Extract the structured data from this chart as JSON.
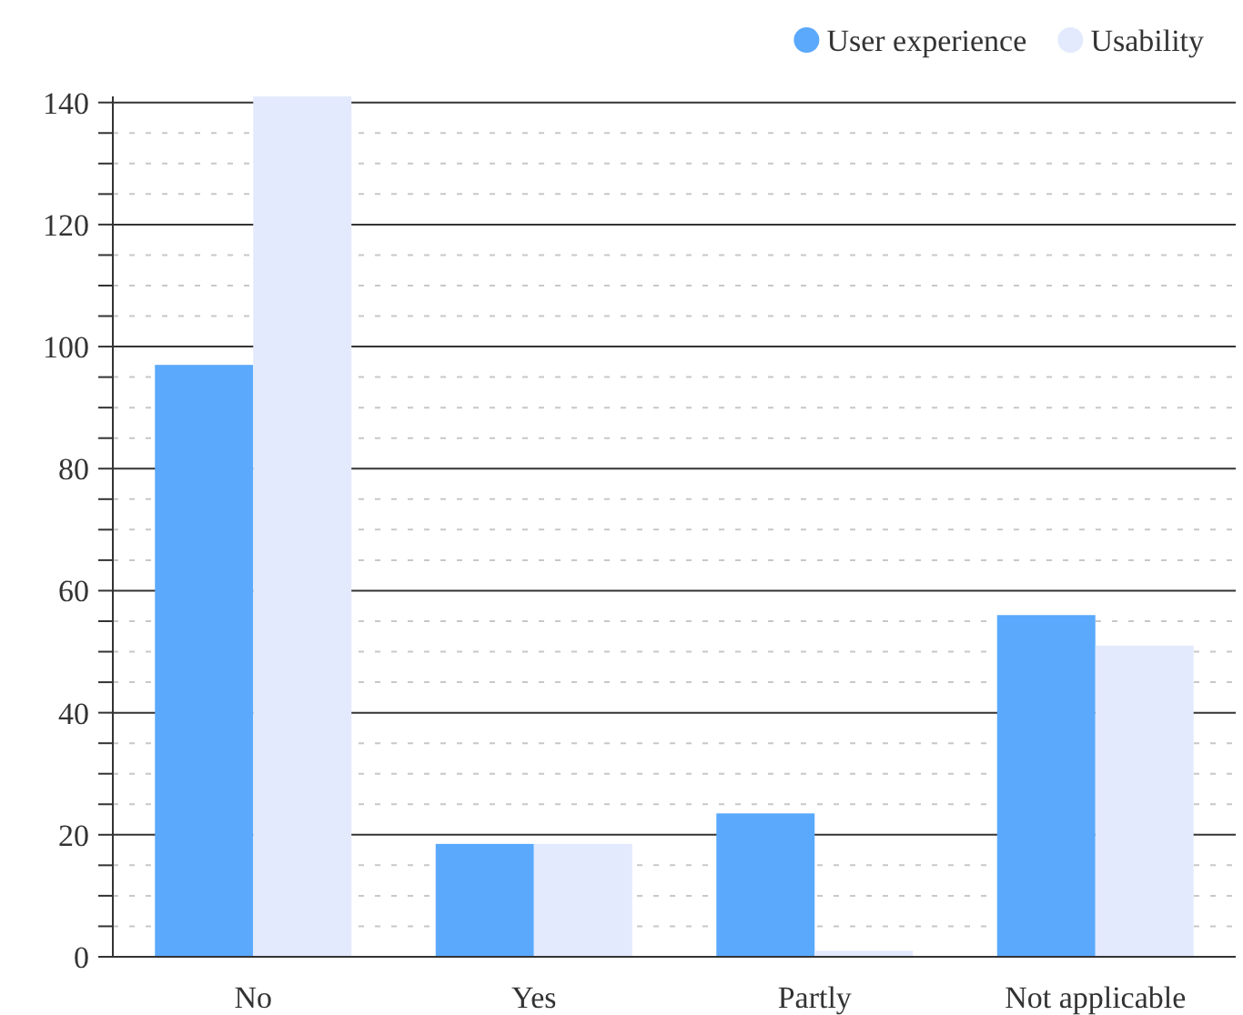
{
  "chart_data": {
    "type": "bar",
    "categories": [
      "No",
      "Yes",
      "Partly",
      "Not applicable"
    ],
    "series": [
      {
        "name": "User experience",
        "color": "#5aa9fd",
        "values": [
          97,
          18.5,
          23.5,
          56
        ]
      },
      {
        "name": "Usability",
        "color": "#e3eafd",
        "values": [
          141,
          18.5,
          1,
          51
        ]
      }
    ],
    "ylim": [
      0,
      141
    ],
    "yticks": [
      0,
      {
        "value": 5,
        "label": null
      },
      {
        "value": 10,
        "label": null
      },
      {
        "value": 15,
        "label": null
      },
      20,
      {
        "value": 25,
        "label": null
      },
      {
        "value": 30,
        "label": null
      },
      {
        "value": 35,
        "label": null
      },
      40,
      {
        "value": 45,
        "label": null
      },
      {
        "value": 50,
        "label": null
      },
      {
        "value": 55,
        "label": null
      },
      60,
      {
        "value": 65,
        "label": null
      },
      {
        "value": 70,
        "label": null
      },
      {
        "value": 75,
        "label": null
      },
      80,
      {
        "value": 85,
        "label": null
      },
      {
        "value": 90,
        "label": null
      },
      {
        "value": 95,
        "label": null
      },
      100,
      {
        "value": 105,
        "label": null
      },
      {
        "value": 110,
        "label": null
      },
      {
        "value": 115,
        "label": null
      },
      120,
      {
        "value": 125,
        "label": null
      },
      {
        "value": 130,
        "label": null
      },
      {
        "value": 135,
        "label": null
      },
      140
    ],
    "grid": true,
    "legend": "top right"
  }
}
